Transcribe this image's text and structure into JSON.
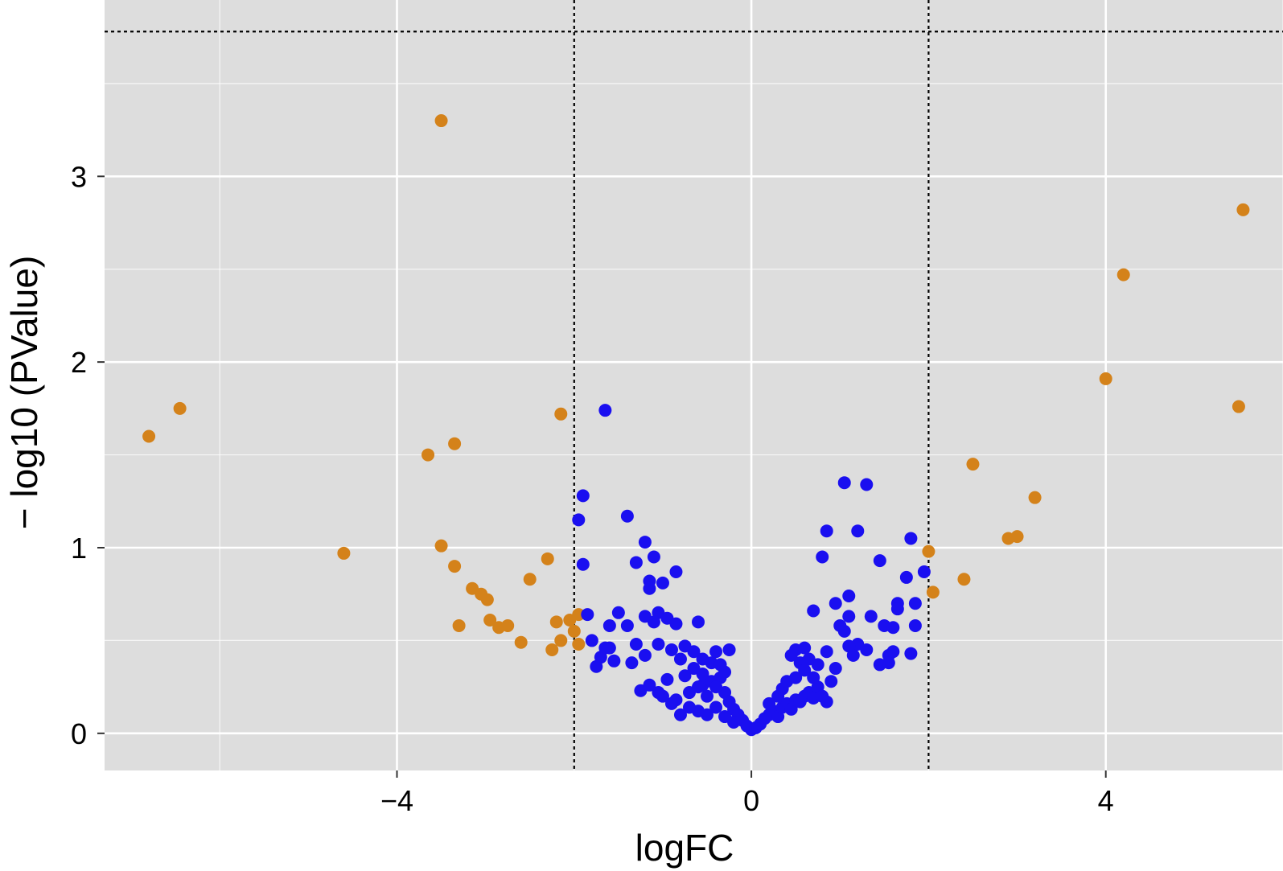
{
  "chart_data": {
    "type": "scatter",
    "title": "",
    "xlabel": "logFC",
    "ylabel": "− log10 (PValue)",
    "xlim": [
      -7.3,
      6.0
    ],
    "ylim": [
      -0.2,
      3.95
    ],
    "x_ticks": [
      -4,
      0,
      4
    ],
    "x_tick_labels": [
      "−4",
      "0",
      "4"
    ],
    "y_ticks": [
      0,
      1,
      2,
      3
    ],
    "y_tick_labels": [
      "0",
      "1",
      "2",
      "3"
    ],
    "grid": true,
    "legend": "none",
    "thresholds": {
      "vertical_x": [
        -2,
        2
      ],
      "horizontal_y": 3.78
    },
    "colors": {
      "panel": "#dddddd",
      "grid": "#ffffff",
      "significant": "#d4821a",
      "not_significant": "#1a0ff0",
      "threshold": "#000000"
    },
    "series": [
      {
        "color": "#d4821a",
        "points": [
          [
            -6.8,
            1.6
          ],
          [
            -6.45,
            1.75
          ],
          [
            -3.5,
            3.3
          ],
          [
            -3.65,
            1.5
          ],
          [
            -3.35,
            1.56
          ],
          [
            -4.6,
            0.97
          ],
          [
            -3.5,
            1.01
          ],
          [
            -3.35,
            0.9
          ],
          [
            -3.15,
            0.78
          ],
          [
            -3.05,
            0.75
          ],
          [
            -2.98,
            0.72
          ],
          [
            -3.3,
            0.58
          ],
          [
            -2.95,
            0.61
          ],
          [
            -2.85,
            0.57
          ],
          [
            -2.75,
            0.58
          ],
          [
            -2.6,
            0.49
          ],
          [
            -2.5,
            0.83
          ],
          [
            -2.3,
            0.94
          ],
          [
            -2.25,
            0.45
          ],
          [
            -2.15,
            0.5
          ],
          [
            -2.2,
            0.6
          ],
          [
            -2.05,
            0.61
          ],
          [
            -2.0,
            0.55
          ],
          [
            -1.95,
            0.64
          ],
          [
            -1.95,
            0.48
          ],
          [
            -2.15,
            1.72
          ],
          [
            2.0,
            0.98
          ],
          [
            2.05,
            0.76
          ],
          [
            2.4,
            0.83
          ],
          [
            2.5,
            1.45
          ],
          [
            2.9,
            1.05
          ],
          [
            3.0,
            1.06
          ],
          [
            3.2,
            1.27
          ],
          [
            4.0,
            1.91
          ],
          [
            4.2,
            2.47
          ],
          [
            5.5,
            1.76
          ],
          [
            5.55,
            2.82
          ]
        ]
      },
      {
        "color": "#1a0ff0",
        "points": [
          [
            -1.65,
            1.74
          ],
          [
            -1.9,
            1.28
          ],
          [
            -1.95,
            1.15
          ],
          [
            -1.9,
            0.91
          ],
          [
            -1.85,
            0.64
          ],
          [
            -1.4,
            1.17
          ],
          [
            -1.2,
            1.03
          ],
          [
            -1.1,
            0.95
          ],
          [
            -1.3,
            0.92
          ],
          [
            -0.85,
            0.87
          ],
          [
            -1.15,
            0.82
          ],
          [
            -1.0,
            0.81
          ],
          [
            -1.15,
            0.78
          ],
          [
            -1.6,
            0.46
          ],
          [
            -1.7,
            0.41
          ],
          [
            -1.75,
            0.36
          ],
          [
            -1.55,
            0.39
          ],
          [
            -1.65,
            0.46
          ],
          [
            -1.8,
            0.5
          ],
          [
            -1.6,
            0.58
          ],
          [
            -1.5,
            0.65
          ],
          [
            -1.3,
            0.48
          ],
          [
            -1.4,
            0.58
          ],
          [
            -1.2,
            0.63
          ],
          [
            -1.05,
            0.65
          ],
          [
            -0.95,
            0.62
          ],
          [
            -1.1,
            0.6
          ],
          [
            -0.85,
            0.59
          ],
          [
            -0.6,
            0.6
          ],
          [
            -1.35,
            0.38
          ],
          [
            -1.2,
            0.42
          ],
          [
            -1.05,
            0.48
          ],
          [
            -0.9,
            0.45
          ],
          [
            -0.8,
            0.4
          ],
          [
            -0.75,
            0.47
          ],
          [
            -0.65,
            0.44
          ],
          [
            -0.55,
            0.4
          ],
          [
            -0.45,
            0.38
          ],
          [
            -0.4,
            0.44
          ],
          [
            -0.35,
            0.37
          ],
          [
            -1.25,
            0.23
          ],
          [
            -1.15,
            0.26
          ],
          [
            -1.05,
            0.22
          ],
          [
            -0.95,
            0.29
          ],
          [
            -0.85,
            0.18
          ],
          [
            -0.75,
            0.31
          ],
          [
            -0.65,
            0.35
          ],
          [
            -0.55,
            0.26
          ],
          [
            -0.5,
            0.2
          ],
          [
            -0.45,
            0.28
          ],
          [
            -0.35,
            0.3
          ],
          [
            -0.3,
            0.22
          ],
          [
            -0.25,
            0.17
          ],
          [
            -0.2,
            0.13
          ],
          [
            -0.15,
            0.1
          ],
          [
            -0.1,
            0.07
          ],
          [
            -0.05,
            0.04
          ],
          [
            0.0,
            0.02
          ],
          [
            -0.6,
            0.12
          ],
          [
            -0.5,
            0.1
          ],
          [
            -0.4,
            0.14
          ],
          [
            -0.3,
            0.09
          ],
          [
            -0.2,
            0.06
          ],
          [
            -0.7,
            0.14
          ],
          [
            -0.8,
            0.1
          ],
          [
            -0.9,
            0.16
          ],
          [
            -1.0,
            0.2
          ],
          [
            -0.55,
            0.32
          ],
          [
            -0.7,
            0.22
          ],
          [
            0.05,
            0.03
          ],
          [
            0.1,
            0.05
          ],
          [
            0.15,
            0.08
          ],
          [
            0.2,
            0.1
          ],
          [
            0.25,
            0.12
          ],
          [
            0.3,
            0.09
          ],
          [
            0.35,
            0.14
          ],
          [
            0.4,
            0.16
          ],
          [
            0.45,
            0.13
          ],
          [
            0.5,
            0.18
          ],
          [
            0.55,
            0.17
          ],
          [
            0.6,
            0.2
          ],
          [
            0.65,
            0.22
          ],
          [
            0.7,
            0.19
          ],
          [
            0.75,
            0.25
          ],
          [
            0.8,
            0.2
          ],
          [
            0.85,
            0.17
          ],
          [
            0.45,
            0.42
          ],
          [
            0.5,
            0.45
          ],
          [
            0.55,
            0.38
          ],
          [
            0.6,
            0.46
          ],
          [
            0.65,
            0.4
          ],
          [
            0.5,
            0.3
          ],
          [
            0.6,
            0.34
          ],
          [
            0.7,
            0.3
          ],
          [
            0.75,
            0.37
          ],
          [
            0.85,
            0.44
          ],
          [
            0.9,
            0.28
          ],
          [
            0.95,
            0.35
          ],
          [
            0.7,
            0.66
          ],
          [
            0.8,
            0.95
          ],
          [
            0.85,
            1.09
          ],
          [
            0.95,
            0.7
          ],
          [
            1.05,
            0.55
          ],
          [
            1.1,
            0.74
          ],
          [
            1.1,
            0.63
          ],
          [
            1.0,
            0.58
          ],
          [
            1.15,
            0.42
          ],
          [
            1.2,
            0.48
          ],
          [
            1.3,
            0.45
          ],
          [
            1.1,
            0.47
          ],
          [
            1.05,
            1.35
          ],
          [
            1.2,
            1.09
          ],
          [
            1.3,
            1.34
          ],
          [
            1.35,
            0.63
          ],
          [
            1.45,
            0.93
          ],
          [
            1.5,
            0.58
          ],
          [
            1.55,
            0.42
          ],
          [
            1.45,
            0.37
          ],
          [
            1.6,
            0.44
          ],
          [
            1.65,
            0.7
          ],
          [
            1.65,
            0.67
          ],
          [
            1.6,
            0.57
          ],
          [
            1.55,
            0.38
          ],
          [
            1.75,
            0.84
          ],
          [
            1.8,
            1.05
          ],
          [
            1.85,
            0.7
          ],
          [
            1.85,
            0.58
          ],
          [
            1.8,
            0.43
          ],
          [
            1.95,
            0.87
          ],
          [
            -0.25,
            0.45
          ],
          [
            -0.3,
            0.33
          ],
          [
            -0.4,
            0.25
          ],
          [
            -0.6,
            0.25
          ],
          [
            0.3,
            0.2
          ],
          [
            0.35,
            0.24
          ],
          [
            0.4,
            0.28
          ],
          [
            0.2,
            0.16
          ]
        ]
      }
    ]
  }
}
